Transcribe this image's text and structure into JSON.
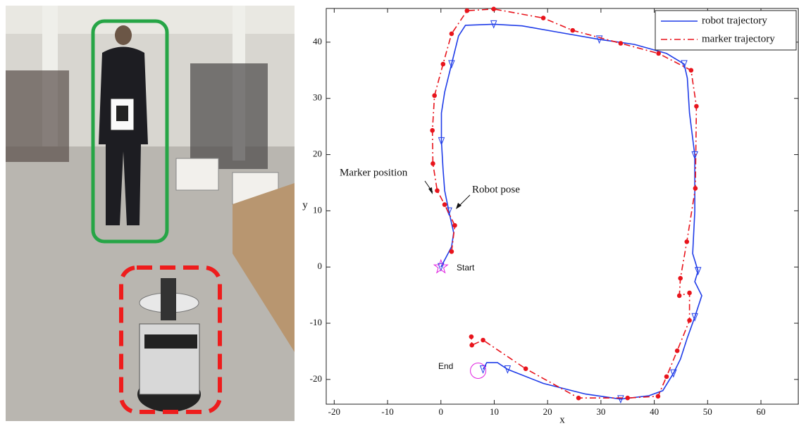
{
  "chart_data": {
    "type": "line",
    "xlabel": "x",
    "ylabel": "y",
    "xlim": [
      -21.5,
      67
    ],
    "ylim": [
      -24.4,
      46
    ],
    "xticks": [
      -20,
      -10,
      0,
      10,
      20,
      30,
      40,
      50,
      60
    ],
    "yticks": [
      -20,
      -10,
      0,
      10,
      20,
      30,
      40
    ],
    "legend": "upper right",
    "series": [
      {
        "name": "robot trajectory",
        "color": "#1f3ce8",
        "linestyle": "solid",
        "marker": "triangle",
        "x": [
          0,
          2,
          2.4,
          1.5,
          0.7,
          0.4,
          0.1,
          0.1,
          0.7,
          2,
          3.3,
          4.6,
          9.9,
          15.2,
          21.8,
          29.7,
          36.3,
          42.3,
          45.6,
          46.2,
          46.6,
          47.6,
          47.6,
          47.2,
          48.2,
          47.6,
          48.9,
          47.6,
          46.2,
          44.9,
          43.6,
          41.6,
          39,
          33.7,
          27.1,
          19.2,
          12.5,
          10.6,
          8.6,
          7.9
        ],
        "values": [
          0,
          3.6,
          6.1,
          9.9,
          13.6,
          17.4,
          22.4,
          27.4,
          31.1,
          36.1,
          41.1,
          43,
          43.2,
          42.9,
          41.8,
          40.5,
          39.6,
          38,
          36.1,
          33.6,
          27.4,
          19.9,
          9.9,
          2.4,
          -0.7,
          -2.6,
          -5.1,
          -8.9,
          -12.6,
          -16.4,
          -18.9,
          -22,
          -22.9,
          -23.5,
          -22.6,
          -20.7,
          -18.2,
          -17,
          -17,
          -18.2
        ]
      },
      {
        "name": "marker trajectory",
        "color": "#e8141c",
        "linestyle": "dashdot",
        "marker": "dot",
        "x": [
          2,
          2.6,
          0.7,
          -0.7,
          -1.5,
          -1.6,
          -1.2,
          0.4,
          2,
          4.9,
          9.9,
          19.2,
          24.7,
          33.7,
          40.8,
          46.9,
          47.9,
          47.7,
          46.1,
          44.9,
          44.7,
          46.6,
          46.6,
          44.3,
          42.3,
          40.7,
          35,
          25.8,
          15.9,
          7.9,
          5.8,
          5.7
        ],
        "values": [
          2.75,
          7.4,
          11.1,
          13.6,
          18.4,
          24.3,
          30.5,
          36.1,
          41.5,
          45.6,
          45.9,
          44.3,
          42.1,
          39.8,
          38,
          35,
          28.6,
          14,
          4.5,
          -2,
          -5.1,
          -4.6,
          -9.5,
          -14.9,
          -19.5,
          -23,
          -23.3,
          -23.3,
          -18.1,
          -13,
          -13.9,
          -12.4
        ]
      }
    ],
    "annotations": [
      "Marker position",
      "Robot pose",
      "Start",
      "End"
    ]
  }
}
